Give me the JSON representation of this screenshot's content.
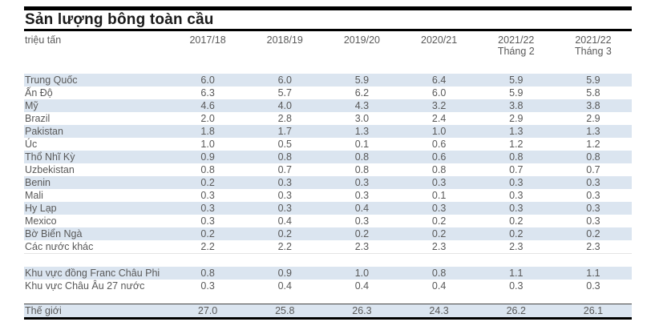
{
  "title": "Sản lượng bông toàn cầu",
  "unit_label": "triệu tấn",
  "columns": [
    {
      "line1": "2017/18",
      "line2": ""
    },
    {
      "line1": "2018/19",
      "line2": ""
    },
    {
      "line1": "2019/20",
      "line2": ""
    },
    {
      "line1": "2020/21",
      "line2": ""
    },
    {
      "line1": "2021/22",
      "line2": "Tháng 2"
    },
    {
      "line1": "2021/22",
      "line2": "Tháng 3"
    }
  ],
  "table": {
    "rows": [
      {
        "label": "Trung Quốc",
        "values": [
          "6.0",
          "6.0",
          "5.9",
          "6.4",
          "5.9",
          "5.9"
        ]
      },
      {
        "label": "Ấn Độ",
        "values": [
          "6.3",
          "5.7",
          "6.2",
          "6.0",
          "5.9",
          "5.8"
        ]
      },
      {
        "label": "Mỹ",
        "values": [
          "4.6",
          "4.0",
          "4.3",
          "3.2",
          "3.8",
          "3.8"
        ]
      },
      {
        "label": "Brazil",
        "values": [
          "2.0",
          "2.8",
          "3.0",
          "2.4",
          "2.9",
          "2.9"
        ]
      },
      {
        "label": "Pakistan",
        "values": [
          "1.8",
          "1.7",
          "1.3",
          "1.0",
          "1.3",
          "1.3"
        ]
      },
      {
        "label": "Úc",
        "values": [
          "1.0",
          "0.5",
          "0.1",
          "0.6",
          "1.2",
          "1.2"
        ]
      },
      {
        "label": "Thổ Nhĩ Kỳ",
        "values": [
          "0.9",
          "0.8",
          "0.8",
          "0.6",
          "0.8",
          "0.8"
        ]
      },
      {
        "label": "Uzbekistan",
        "values": [
          "0.8",
          "0.7",
          "0.8",
          "0.8",
          "0.7",
          "0.7"
        ]
      },
      {
        "label": "Benin",
        "values": [
          "0.2",
          "0.3",
          "0.3",
          "0.3",
          "0.3",
          "0.3"
        ]
      },
      {
        "label": "Mali",
        "values": [
          "0.3",
          "0.3",
          "0.3",
          "0.1",
          "0.3",
          "0.3"
        ]
      },
      {
        "label": "Hy Lạp",
        "values": [
          "0.3",
          "0.3",
          "0.4",
          "0.3",
          "0.3",
          "0.3"
        ]
      },
      {
        "label": "Mexico",
        "values": [
          "0.3",
          "0.4",
          "0.3",
          "0.2",
          "0.2",
          "0.3"
        ]
      },
      {
        "label": "Bờ Biển Ngà",
        "values": [
          "0.2",
          "0.2",
          "0.2",
          "0.2",
          "0.2",
          "0.2"
        ]
      },
      {
        "label": "Các nước khác",
        "values": [
          "2.2",
          "2.2",
          "2.3",
          "2.3",
          "2.3",
          "2.3"
        ]
      }
    ],
    "region_rows": [
      {
        "label": "Khu vực đồng Franc Châu Phi",
        "values": [
          "0.8",
          "0.9",
          "1.0",
          "0.8",
          "1.1",
          "1.1"
        ]
      },
      {
        "label": "Khu vực Châu Âu 27 nước",
        "values": [
          "0.3",
          "0.4",
          "0.4",
          "0.4",
          "0.3",
          "0.3"
        ]
      }
    ],
    "total_row": {
      "label": "Thế giới",
      "values": [
        "27.0",
        "25.8",
        "26.3",
        "24.3",
        "26.2",
        "26.1"
      ]
    }
  },
  "colors": {
    "row_shade": "#dbe5f0",
    "text": "#595959",
    "title_text": "#1a1a1a",
    "rule": "#000000",
    "faint_rule": "#e4e4e4",
    "dark_rule": "#444444"
  }
}
